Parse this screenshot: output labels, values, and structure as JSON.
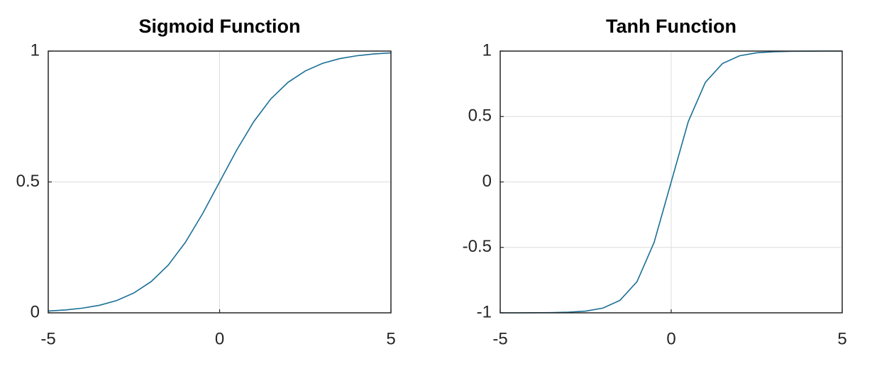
{
  "chart_data": [
    {
      "type": "line",
      "title": "Sigmoid Function",
      "x": [
        -5,
        -4.5,
        -4,
        -3.5,
        -3,
        -2.5,
        -2,
        -1.5,
        -1,
        -0.5,
        0,
        0.5,
        1,
        1.5,
        2,
        2.5,
        3,
        3.5,
        4,
        4.5,
        5
      ],
      "values": [
        0.007,
        0.011,
        0.018,
        0.029,
        0.047,
        0.076,
        0.119,
        0.182,
        0.269,
        0.378,
        0.5,
        0.622,
        0.731,
        0.818,
        0.881,
        0.924,
        0.953,
        0.971,
        0.982,
        0.989,
        0.993
      ],
      "color": "#1a6f96",
      "xlim": [
        -5,
        5
      ],
      "xticks": [
        -5,
        0,
        5
      ],
      "ylim": [
        0,
        1
      ],
      "yticks": [
        0,
        0.5,
        1
      ],
      "grid": true
    },
    {
      "type": "line",
      "title": "Tanh Function",
      "x": [
        -5,
        -4.5,
        -4,
        -3.5,
        -3,
        -2.5,
        -2,
        -1.5,
        -1,
        -0.5,
        0,
        0.5,
        1,
        1.5,
        2,
        2.5,
        3,
        3.5,
        4,
        4.5,
        5
      ],
      "values": [
        -1.0,
        -1.0,
        -0.999,
        -0.998,
        -0.995,
        -0.987,
        -0.964,
        -0.905,
        -0.762,
        -0.462,
        0,
        0.462,
        0.762,
        0.905,
        0.964,
        0.987,
        0.995,
        0.998,
        0.999,
        1.0,
        1.0
      ],
      "color": "#1a6f96",
      "xlim": [
        -5,
        5
      ],
      "xticks": [
        -5,
        0,
        5
      ],
      "ylim": [
        -1,
        1
      ],
      "yticks": [
        -1,
        -0.5,
        0,
        0.5,
        1
      ],
      "grid": true
    }
  ]
}
